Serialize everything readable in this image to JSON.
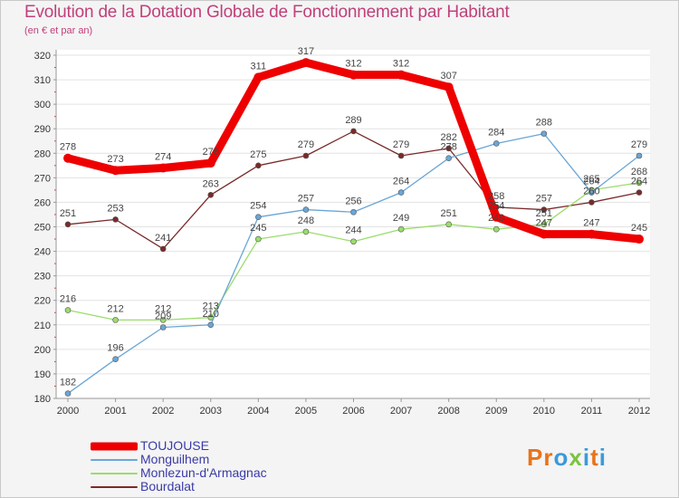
{
  "title": "Evolution de la Dotation Globale de Fonctionnement par Habitant",
  "subtitle": "(en € et par an)",
  "logo": {
    "letters": [
      "P",
      "r",
      "o",
      "x",
      "i",
      "t",
      "i"
    ],
    "colors": [
      "#e8731a",
      "#e8731a",
      "#3b9ad9",
      "#7cc242",
      "#3b9ad9",
      "#e8731a",
      "#3b9ad9"
    ]
  },
  "chart_data": {
    "type": "line",
    "title": "Evolution de la Dotation Globale de Fonctionnement par Habitant",
    "subtitle": "(en € et par an)",
    "x": [
      "2000",
      "2001",
      "2002",
      "2003",
      "2004",
      "2005",
      "2006",
      "2007",
      "2008",
      "2009",
      "2010",
      "2011",
      "2012"
    ],
    "ylim": [
      180,
      320
    ],
    "yticks": [
      "180",
      "190",
      "200",
      "210",
      "220",
      "230",
      "240",
      "250",
      "260",
      "270",
      "280",
      "290",
      "300",
      "310",
      "320"
    ],
    "grid": "horizontal",
    "legend_position": "bottom-left",
    "series": [
      {
        "name": "TOUJOUSE",
        "color": "#ee0000",
        "values": [
          278,
          273,
          274,
          276,
          311,
          317,
          312,
          312,
          307,
          254,
          247,
          247,
          245
        ]
      },
      {
        "name": "Monguilhem",
        "color": "#6aa6d6",
        "values": [
          182,
          196,
          209,
          210,
          254,
          257,
          256,
          264,
          278,
          284,
          288,
          264,
          279
        ]
      },
      {
        "name": "Monlezun-d'Armagnac",
        "color": "#9bdc6c",
        "values": [
          216,
          212,
          212,
          213,
          245,
          248,
          244,
          249,
          251,
          249,
          251,
          265,
          268
        ]
      },
      {
        "name": "Bourdalat",
        "color": "#7a2a2a",
        "values": [
          251,
          253,
          241,
          263,
          275,
          279,
          289,
          279,
          282,
          258,
          257,
          260,
          264
        ]
      }
    ]
  }
}
